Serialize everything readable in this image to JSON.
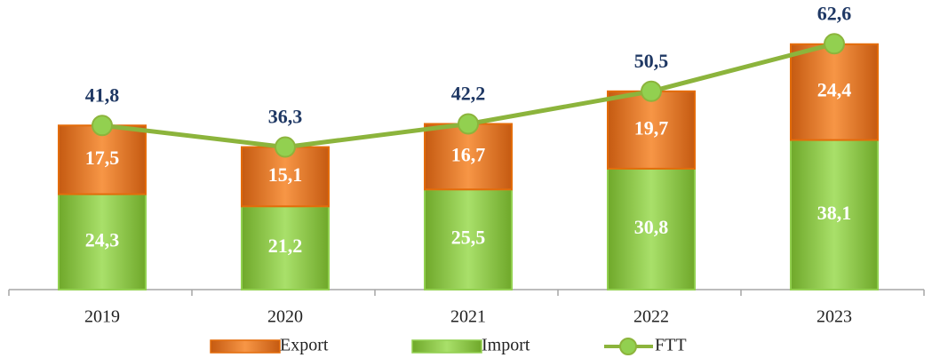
{
  "chart_data": {
    "type": "bar",
    "categories": [
      "2019",
      "2020",
      "2021",
      "2022",
      "2023"
    ],
    "series": [
      {
        "name": "Export",
        "type": "bar",
        "color": "#e36c0a",
        "values": [
          17.5,
          15.1,
          16.7,
          19.7,
          24.4
        ],
        "value_labels": [
          "17,5",
          "15,1",
          "16,7",
          "19,7",
          "24,4"
        ]
      },
      {
        "name": "Import",
        "type": "bar",
        "color": "#92d050",
        "values": [
          24.3,
          21.2,
          25.5,
          30.8,
          38.1
        ],
        "value_labels": [
          "24,3",
          "21,2",
          "25,5",
          "30,8",
          "38,1"
        ]
      },
      {
        "name": "FTT",
        "type": "line",
        "color": "#8cb43c",
        "values": [
          41.8,
          36.3,
          42.2,
          50.5,
          62.6
        ],
        "value_labels": [
          "41,8",
          "36,3",
          "42,2",
          "50,5",
          "62,6"
        ]
      }
    ],
    "ylim": [
      0,
      70
    ],
    "legend": "bottom"
  }
}
